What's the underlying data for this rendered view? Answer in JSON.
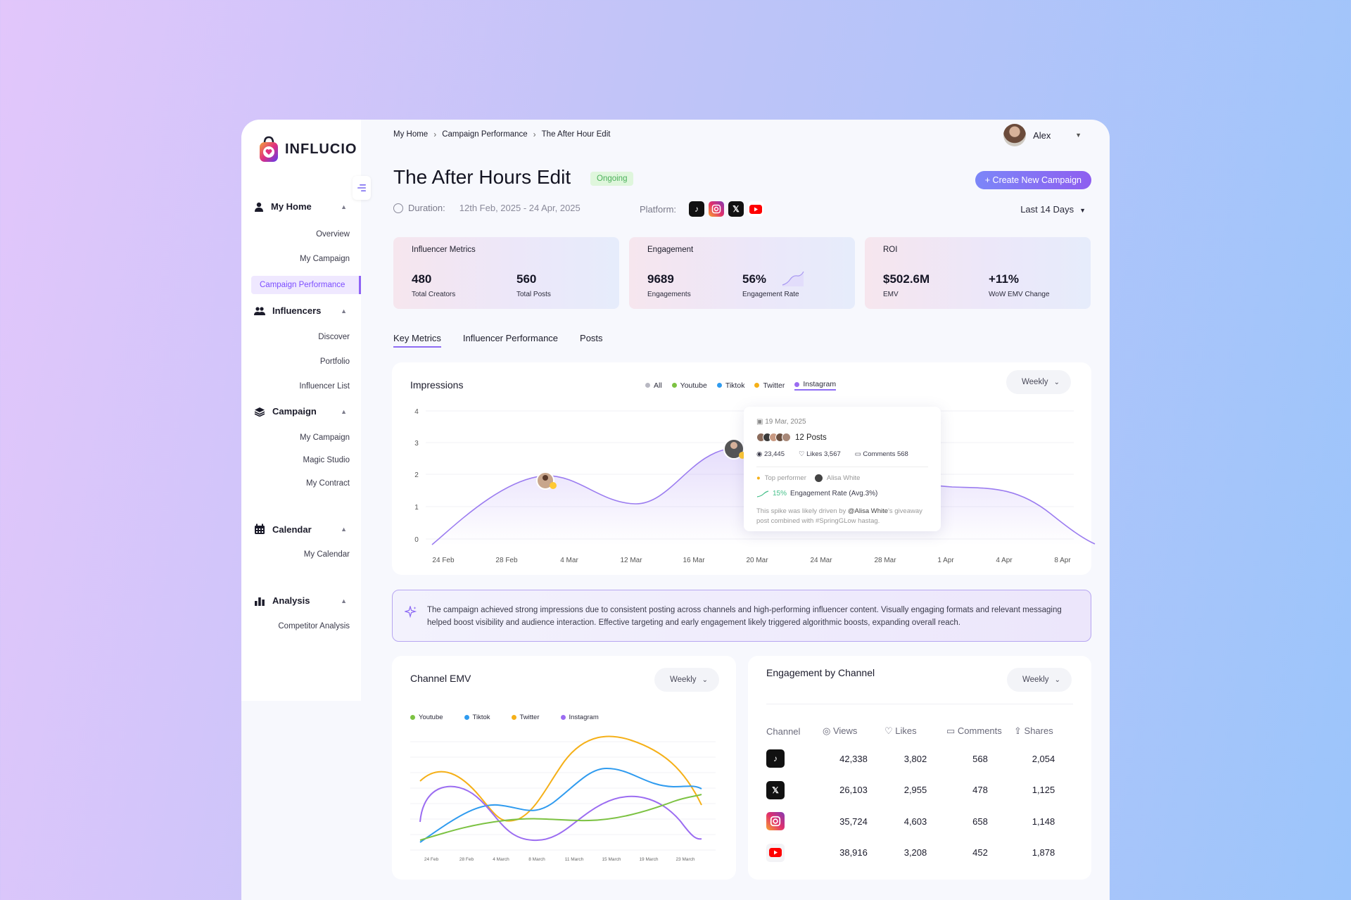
{
  "brand": {
    "name": "INFLUCIO"
  },
  "sidebar": {
    "groups": [
      {
        "label": "My Home",
        "items": [
          "Overview",
          "My Campaign",
          "Campaign Performance"
        ]
      },
      {
        "label": "Influencers",
        "items": [
          "Discover",
          "Portfolio",
          "Influencer List"
        ]
      },
      {
        "label": "Campaign",
        "items": [
          "My Campaign",
          "Magic Studio",
          "My Contract"
        ]
      },
      {
        "label": "Calendar",
        "items": [
          "My Calendar"
        ]
      },
      {
        "label": "Analysis",
        "items": [
          "Competitor Analysis"
        ]
      }
    ],
    "active_item": "Campaign Performance"
  },
  "breadcrumb": [
    "My Home",
    "Campaign Performance",
    "The After Hour Edit"
  ],
  "user": {
    "name": "Alex"
  },
  "header": {
    "title": "The After Hours Edit",
    "status": "Ongoing",
    "create_button": "+ Create New Campaign",
    "duration_label": "Duration:",
    "duration_value": "12th Feb, 2025 - 24 Apr, 2025",
    "platform_label": "Platform:",
    "platforms": [
      "tiktok-icon",
      "instagram-icon",
      "x-icon",
      "youtube-icon"
    ],
    "range": "Last 14 Days"
  },
  "kpis": [
    {
      "title": "Influencer Metrics",
      "values": [
        {
          "value": "480",
          "label": "Total Creators"
        },
        {
          "value": "560",
          "label": "Total Posts"
        }
      ]
    },
    {
      "title": "Engagement",
      "values": [
        {
          "value": "9689",
          "label": "Engagements"
        },
        {
          "value": "56%",
          "label": "Engagement Rate"
        }
      ]
    },
    {
      "title": "ROI",
      "values": [
        {
          "value": "$502.6M",
          "label": "EMV"
        },
        {
          "value": "+11%",
          "label": "WoW EMV Change"
        }
      ]
    }
  ],
  "tabs": [
    "Key Metrics",
    "Influencer Performance",
    "Posts"
  ],
  "impressions": {
    "title": "Impressions",
    "period": "Weekly",
    "legend": [
      {
        "name": "All",
        "color": "#b8b8c2"
      },
      {
        "name": "Youtube",
        "color": "#7cc242"
      },
      {
        "name": "Tiktok",
        "color": "#2f9bef"
      },
      {
        "name": "Twitter",
        "color": "#f5b018"
      },
      {
        "name": "Instagram",
        "color": "#9b6cf1"
      }
    ],
    "active_series": "Instagram",
    "y_ticks": [
      "4",
      "3",
      "2",
      "1",
      "0"
    ],
    "x_ticks": [
      "24 Feb",
      "28 Feb",
      "4 Mar",
      "12 Mar",
      "16 Mar",
      "20 Mar",
      "24 Mar",
      "28 Mar",
      "1 Apr",
      "4 Apr",
      "8 Apr"
    ],
    "tooltip": {
      "date": "19 Mar, 2025",
      "posts": "12 Posts",
      "views": "23,445",
      "likes": "Likes 3,567",
      "comments": "Comments 568",
      "top_performer_label": "Top performer",
      "top_performer": "Alisa White",
      "rate_change": "15%",
      "rate_label": "Engagement Rate (Avg.3%)",
      "note_1": "This spike was likely driven by ",
      "note_handle": "@Alisa White",
      "note_2": "'s giveaway post combined with #SpringGLow hastag."
    }
  },
  "insight": {
    "text": "The campaign achieved strong impressions due to consistent posting across channels and high-performing influencer content. Visually engaging formats and relevant messaging helped boost visibility and audience interaction. Effective targeting and early engagement likely triggered algorithmic boosts, expanding overall reach."
  },
  "channel_emv": {
    "title": "Channel EMV",
    "period": "Weekly",
    "legend": [
      {
        "name": "Youtube",
        "color": "#7cc242"
      },
      {
        "name": "Tiktok",
        "color": "#2f9bef"
      },
      {
        "name": "Twitter",
        "color": "#f5b018"
      },
      {
        "name": "Instagram",
        "color": "#9b6cf1"
      }
    ],
    "x_ticks": [
      "24 Feb",
      "28 Feb",
      "4 March",
      "8 March",
      "11 March",
      "15 March",
      "19 March",
      "23 March"
    ]
  },
  "engagement": {
    "title": "Engagement by Channel",
    "period": "Weekly",
    "columns": [
      "Channel",
      "Views",
      "Likes",
      "Comments",
      "Shares"
    ],
    "rows": [
      {
        "channel": "tiktok-icon",
        "views": "42,338",
        "likes": "3,802",
        "comments": "568",
        "shares": "2,054"
      },
      {
        "channel": "x-icon",
        "views": "26,103",
        "likes": "2,955",
        "comments": "478",
        "shares": "1,125"
      },
      {
        "channel": "instagram-icon",
        "views": "35,724",
        "likes": "4,603",
        "comments": "658",
        "shares": "1,148"
      },
      {
        "channel": "youtube-icon",
        "views": "38,916",
        "likes": "3,208",
        "comments": "452",
        "shares": "1,878"
      }
    ]
  }
}
